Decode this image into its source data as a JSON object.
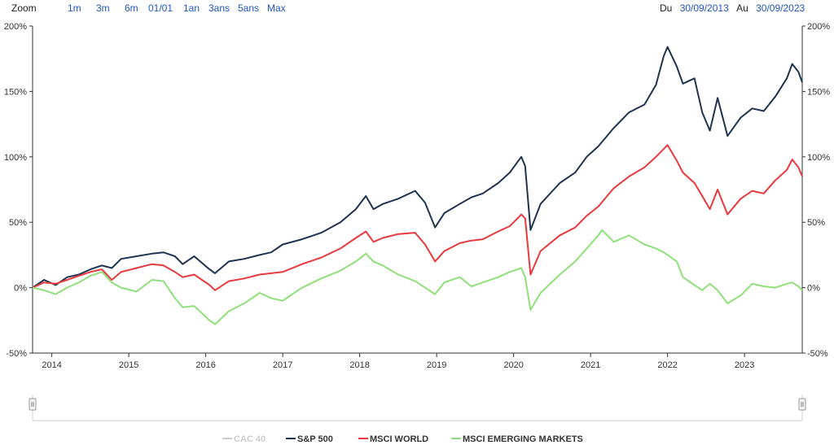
{
  "toolbar": {
    "zoom_label": "Zoom",
    "zoom_buttons": [
      "1m",
      "3m",
      "6m",
      "01/01",
      "1an",
      "3ans",
      "5ans",
      "Max"
    ],
    "from_label": "Du",
    "from_value": "30/09/2013",
    "to_label": "Au",
    "to_value": "30/09/2023"
  },
  "navigator": {
    "handle_glyph": "|||"
  },
  "chart_data": {
    "type": "line",
    "y_ticks": [
      "200%",
      "150%",
      "100%",
      "50%",
      "0%",
      "-50%"
    ],
    "ylim": [
      -50,
      200
    ],
    "x_ticks": [
      "2014",
      "2015",
      "2016",
      "2017",
      "2018",
      "2019",
      "2020",
      "2021",
      "2022",
      "2023"
    ],
    "xlim": [
      2013.75,
      2023.75
    ],
    "grid": false,
    "legend_position": "bottom",
    "series": [
      {
        "name": "CAC 40",
        "color": "#cccccc",
        "hidden": true,
        "points": []
      },
      {
        "name": "S&P 500",
        "color": "#1f3350",
        "points": [
          [
            2013.75,
            0
          ],
          [
            2013.9,
            6
          ],
          [
            2014.05,
            2
          ],
          [
            2014.2,
            8
          ],
          [
            2014.35,
            10
          ],
          [
            2014.5,
            14
          ],
          [
            2014.65,
            17
          ],
          [
            2014.78,
            15
          ],
          [
            2014.9,
            22
          ],
          [
            2015.1,
            24
          ],
          [
            2015.3,
            26
          ],
          [
            2015.45,
            27
          ],
          [
            2015.6,
            24
          ],
          [
            2015.7,
            18
          ],
          [
            2015.85,
            24
          ],
          [
            2016.05,
            14
          ],
          [
            2016.12,
            11
          ],
          [
            2016.3,
            20
          ],
          [
            2016.5,
            22
          ],
          [
            2016.7,
            25
          ],
          [
            2016.85,
            27
          ],
          [
            2017.0,
            33
          ],
          [
            2017.25,
            37
          ],
          [
            2017.5,
            42
          ],
          [
            2017.75,
            50
          ],
          [
            2017.95,
            60
          ],
          [
            2018.08,
            70
          ],
          [
            2018.18,
            60
          ],
          [
            2018.3,
            64
          ],
          [
            2018.5,
            68
          ],
          [
            2018.72,
            74
          ],
          [
            2018.85,
            65
          ],
          [
            2018.98,
            46
          ],
          [
            2019.1,
            57
          ],
          [
            2019.3,
            64
          ],
          [
            2019.45,
            69
          ],
          [
            2019.6,
            72
          ],
          [
            2019.8,
            80
          ],
          [
            2019.95,
            88
          ],
          [
            2020.1,
            100
          ],
          [
            2020.15,
            93
          ],
          [
            2020.22,
            44
          ],
          [
            2020.35,
            64
          ],
          [
            2020.6,
            80
          ],
          [
            2020.8,
            88
          ],
          [
            2020.95,
            100
          ],
          [
            2021.1,
            108
          ],
          [
            2021.3,
            122
          ],
          [
            2021.5,
            134
          ],
          [
            2021.7,
            140
          ],
          [
            2021.85,
            155
          ],
          [
            2021.95,
            177
          ],
          [
            2022.0,
            184
          ],
          [
            2022.12,
            169
          ],
          [
            2022.2,
            156
          ],
          [
            2022.35,
            160
          ],
          [
            2022.45,
            134
          ],
          [
            2022.55,
            120
          ],
          [
            2022.65,
            145
          ],
          [
            2022.78,
            116
          ],
          [
            2022.95,
            130
          ],
          [
            2023.1,
            137
          ],
          [
            2023.25,
            135
          ],
          [
            2023.4,
            146
          ],
          [
            2023.55,
            160
          ],
          [
            2023.62,
            171
          ],
          [
            2023.7,
            165
          ],
          [
            2023.75,
            157
          ]
        ]
      },
      {
        "name": "MSCI WORLD",
        "color": "#e8393e",
        "points": [
          [
            2013.75,
            0
          ],
          [
            2013.9,
            4
          ],
          [
            2014.05,
            3
          ],
          [
            2014.2,
            6
          ],
          [
            2014.35,
            9
          ],
          [
            2014.5,
            12
          ],
          [
            2014.65,
            14
          ],
          [
            2014.78,
            6
          ],
          [
            2014.9,
            12
          ],
          [
            2015.1,
            15
          ],
          [
            2015.3,
            18
          ],
          [
            2015.45,
            17
          ],
          [
            2015.6,
            12
          ],
          [
            2015.7,
            8
          ],
          [
            2015.85,
            10
          ],
          [
            2016.05,
            2
          ],
          [
            2016.12,
            -2
          ],
          [
            2016.3,
            5
          ],
          [
            2016.5,
            7
          ],
          [
            2016.7,
            10
          ],
          [
            2016.85,
            11
          ],
          [
            2017.0,
            12
          ],
          [
            2017.25,
            18
          ],
          [
            2017.5,
            23
          ],
          [
            2017.75,
            30
          ],
          [
            2017.95,
            38
          ],
          [
            2018.08,
            43
          ],
          [
            2018.18,
            35
          ],
          [
            2018.3,
            38
          ],
          [
            2018.5,
            41
          ],
          [
            2018.72,
            42
          ],
          [
            2018.85,
            33
          ],
          [
            2018.98,
            20
          ],
          [
            2019.1,
            28
          ],
          [
            2019.3,
            34
          ],
          [
            2019.45,
            36
          ],
          [
            2019.6,
            37
          ],
          [
            2019.8,
            43
          ],
          [
            2019.95,
            47
          ],
          [
            2020.1,
            56
          ],
          [
            2020.15,
            53
          ],
          [
            2020.22,
            10
          ],
          [
            2020.35,
            28
          ],
          [
            2020.6,
            40
          ],
          [
            2020.8,
            46
          ],
          [
            2020.95,
            55
          ],
          [
            2021.1,
            62
          ],
          [
            2021.3,
            76
          ],
          [
            2021.5,
            85
          ],
          [
            2021.7,
            92
          ],
          [
            2021.85,
            100
          ],
          [
            2021.95,
            106
          ],
          [
            2022.0,
            109
          ],
          [
            2022.12,
            97
          ],
          [
            2022.2,
            88
          ],
          [
            2022.35,
            80
          ],
          [
            2022.45,
            70
          ],
          [
            2022.55,
            60
          ],
          [
            2022.65,
            75
          ],
          [
            2022.78,
            56
          ],
          [
            2022.95,
            68
          ],
          [
            2023.1,
            74
          ],
          [
            2023.25,
            72
          ],
          [
            2023.4,
            82
          ],
          [
            2023.55,
            90
          ],
          [
            2023.62,
            98
          ],
          [
            2023.7,
            92
          ],
          [
            2023.75,
            85
          ]
        ]
      },
      {
        "name": "MSCI EMERGING MARKETS",
        "color": "#8fe07a",
        "points": [
          [
            2013.75,
            0
          ],
          [
            2013.9,
            -2
          ],
          [
            2014.05,
            -5
          ],
          [
            2014.2,
            0
          ],
          [
            2014.35,
            4
          ],
          [
            2014.5,
            9
          ],
          [
            2014.65,
            12
          ],
          [
            2014.78,
            4
          ],
          [
            2014.9,
            0
          ],
          [
            2015.1,
            -3
          ],
          [
            2015.3,
            6
          ],
          [
            2015.45,
            5
          ],
          [
            2015.6,
            -8
          ],
          [
            2015.7,
            -15
          ],
          [
            2015.85,
            -14
          ],
          [
            2016.05,
            -25
          ],
          [
            2016.12,
            -28
          ],
          [
            2016.3,
            -18
          ],
          [
            2016.5,
            -12
          ],
          [
            2016.7,
            -4
          ],
          [
            2016.85,
            -8
          ],
          [
            2017.0,
            -10
          ],
          [
            2017.25,
            0
          ],
          [
            2017.5,
            7
          ],
          [
            2017.75,
            13
          ],
          [
            2017.95,
            20
          ],
          [
            2018.08,
            26
          ],
          [
            2018.18,
            20
          ],
          [
            2018.3,
            17
          ],
          [
            2018.5,
            10
          ],
          [
            2018.72,
            5
          ],
          [
            2018.85,
            0
          ],
          [
            2018.98,
            -5
          ],
          [
            2019.1,
            4
          ],
          [
            2019.3,
            8
          ],
          [
            2019.45,
            1
          ],
          [
            2019.6,
            4
          ],
          [
            2019.8,
            8
          ],
          [
            2019.95,
            12
          ],
          [
            2020.1,
            15
          ],
          [
            2020.15,
            8
          ],
          [
            2020.22,
            -17
          ],
          [
            2020.35,
            -4
          ],
          [
            2020.6,
            10
          ],
          [
            2020.8,
            20
          ],
          [
            2020.95,
            30
          ],
          [
            2021.1,
            40
          ],
          [
            2021.15,
            44
          ],
          [
            2021.3,
            35
          ],
          [
            2021.5,
            40
          ],
          [
            2021.7,
            33
          ],
          [
            2021.85,
            30
          ],
          [
            2021.95,
            27
          ],
          [
            2022.0,
            25
          ],
          [
            2022.12,
            20
          ],
          [
            2022.2,
            8
          ],
          [
            2022.35,
            2
          ],
          [
            2022.45,
            -2
          ],
          [
            2022.55,
            3
          ],
          [
            2022.65,
            -2
          ],
          [
            2022.78,
            -12
          ],
          [
            2022.95,
            -6
          ],
          [
            2023.1,
            3
          ],
          [
            2023.25,
            1
          ],
          [
            2023.4,
            0
          ],
          [
            2023.55,
            3
          ],
          [
            2023.62,
            4
          ],
          [
            2023.7,
            1
          ],
          [
            2023.75,
            -2
          ]
        ]
      }
    ]
  }
}
